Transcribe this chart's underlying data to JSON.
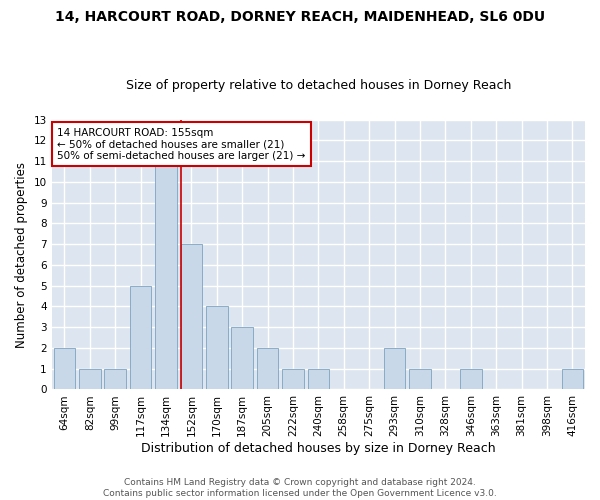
{
  "title1": "14, HARCOURT ROAD, DORNEY REACH, MAIDENHEAD, SL6 0DU",
  "title2": "Size of property relative to detached houses in Dorney Reach",
  "xlabel": "Distribution of detached houses by size in Dorney Reach",
  "ylabel": "Number of detached properties",
  "categories": [
    "64sqm",
    "82sqm",
    "99sqm",
    "117sqm",
    "134sqm",
    "152sqm",
    "170sqm",
    "187sqm",
    "205sqm",
    "222sqm",
    "240sqm",
    "258sqm",
    "275sqm",
    "293sqm",
    "310sqm",
    "328sqm",
    "346sqm",
    "363sqm",
    "381sqm",
    "398sqm",
    "416sqm"
  ],
  "values": [
    2,
    1,
    1,
    5,
    11,
    7,
    4,
    3,
    2,
    1,
    1,
    0,
    0,
    2,
    1,
    0,
    1,
    0,
    0,
    0,
    1
  ],
  "bar_color": "#c8d8e8",
  "bar_edge_color": "#7ba3c0",
  "vline_color": "#cc0000",
  "vline_x": 4.6,
  "annotation_text": "14 HARCOURT ROAD: 155sqm\n← 50% of detached houses are smaller (21)\n50% of semi-detached houses are larger (21) →",
  "annotation_box_facecolor": "white",
  "annotation_box_edgecolor": "#cc0000",
  "ylim": [
    0,
    13
  ],
  "yticks": [
    0,
    1,
    2,
    3,
    4,
    5,
    6,
    7,
    8,
    9,
    10,
    11,
    12,
    13
  ],
  "background_color": "#dde6f0",
  "grid_color": "white",
  "footer1": "Contains HM Land Registry data © Crown copyright and database right 2024.",
  "footer2": "Contains public sector information licensed under the Open Government Licence v3.0.",
  "title1_fontsize": 10,
  "title2_fontsize": 9,
  "xlabel_fontsize": 9,
  "ylabel_fontsize": 8.5,
  "tick_fontsize": 7.5,
  "annotation_fontsize": 7.5,
  "footer_fontsize": 6.5
}
